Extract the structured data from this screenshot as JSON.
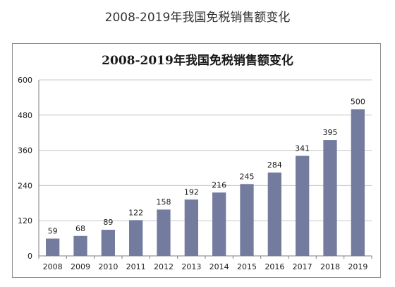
{
  "page_title": "2008-2019年我国免税销售额变化",
  "colors": {
    "bar": "#737b9e",
    "grid": "#c8c8c8",
    "axis": "#7f7f7f",
    "frame": "#8c8c8c",
    "text": "#1a1a1a"
  },
  "chart_data": {
    "type": "bar",
    "title": "2008-2019年我国免税销售额变化",
    "xlabel": "",
    "ylabel": "",
    "categories": [
      "2008",
      "2009",
      "2010",
      "2011",
      "2012",
      "2013",
      "2014",
      "2015",
      "2016",
      "2017",
      "2018",
      "2019"
    ],
    "values": [
      59,
      68,
      89,
      122,
      158,
      192,
      216,
      245,
      284,
      341,
      395,
      500
    ],
    "ylim": [
      0,
      600
    ],
    "yticks": [
      0,
      120,
      240,
      360,
      480,
      600
    ],
    "grid": true,
    "legend": "none",
    "data_labels": true
  }
}
